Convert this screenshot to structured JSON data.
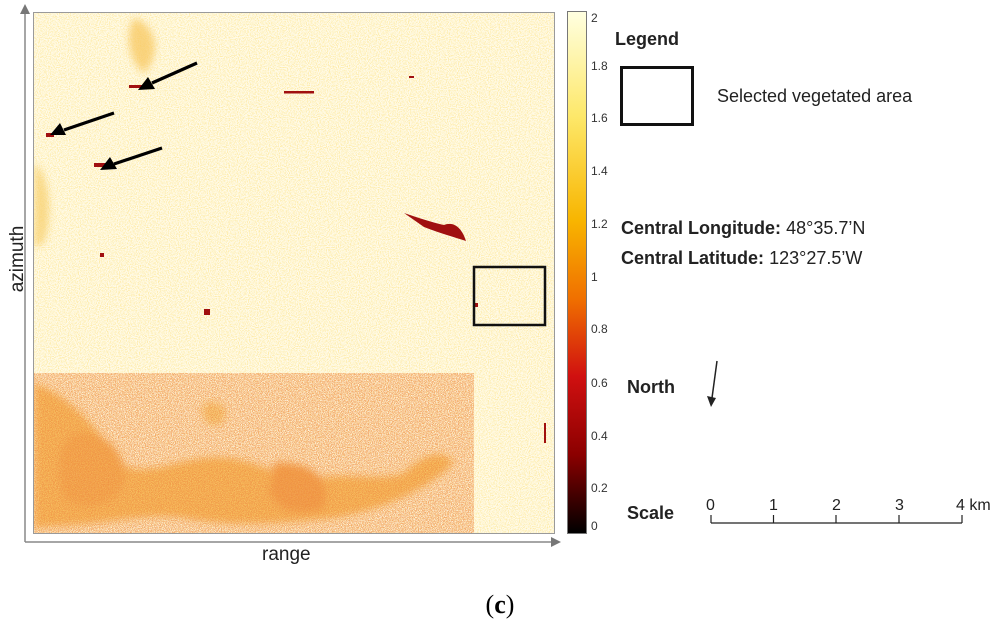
{
  "axes": {
    "x_label": "range",
    "y_label": "azimuth"
  },
  "colorbar": {
    "ticks": [
      "2",
      "1.8",
      "1.6",
      "1.4",
      "1.2",
      "1",
      "0.8",
      "0.6",
      "0.4",
      "0.2",
      "0"
    ],
    "colormap": [
      "#000000",
      "#8b0000",
      "#d01010",
      "#f07000",
      "#f8b500",
      "#fde86a",
      "#ffffe0"
    ]
  },
  "legend": {
    "title": "Legend",
    "box_label": "Selected vegetated area"
  },
  "location": {
    "longitude_label": "Central Longitude:",
    "longitude_value": "48°35.7’N",
    "latitude_label": "Central Latitude:",
    "latitude_value": "123°27.5’W"
  },
  "north": {
    "label": "North"
  },
  "scale": {
    "label": "Scale",
    "ticks": [
      "0",
      "1",
      "2",
      "3",
      "4 km"
    ]
  },
  "caption": {
    "open": "(",
    "letter": "c",
    "close": ")"
  }
}
